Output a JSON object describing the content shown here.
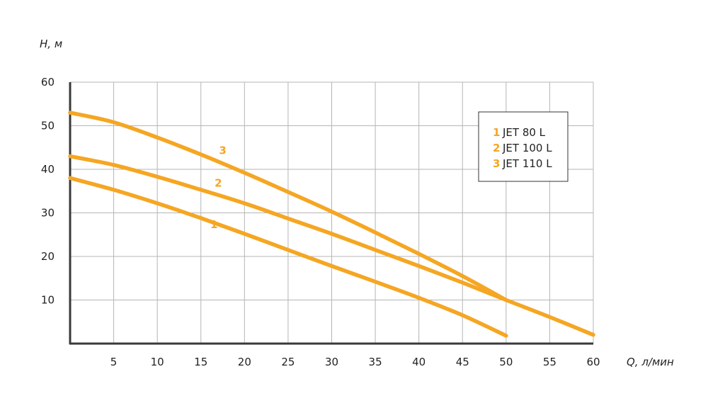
{
  "chart_data": {
    "type": "line",
    "ylabel": "H, м",
    "xlabel": "Q, л/мин",
    "xlim": [
      0,
      60
    ],
    "ylim": [
      0,
      60
    ],
    "x_ticks": [
      5,
      10,
      15,
      20,
      25,
      30,
      35,
      40,
      45,
      50,
      55,
      60
    ],
    "y_ticks": [
      10,
      20,
      30,
      40,
      50,
      60
    ],
    "grid": true,
    "line_color": "#f5a623",
    "legend_position": "top-right",
    "legend": [
      {
        "num": "1",
        "name": "JET 80 L"
      },
      {
        "num": "2",
        "name": "JET 100 L"
      },
      {
        "num": "3",
        "name": "JET 110 L"
      }
    ],
    "series": [
      {
        "label": "1",
        "label_at": [
          16.5,
          26.5
        ],
        "points": [
          [
            0,
            38
          ],
          [
            5,
            35.3
          ],
          [
            10,
            32.2
          ],
          [
            15,
            28.8
          ],
          [
            20,
            25.2
          ],
          [
            25,
            21.5
          ],
          [
            30,
            17.8
          ],
          [
            35,
            14.2
          ],
          [
            40,
            10.5
          ],
          [
            45,
            6.5
          ],
          [
            50,
            1.8
          ]
        ]
      },
      {
        "label": "2",
        "label_at": [
          17,
          36
        ],
        "points": [
          [
            0,
            43
          ],
          [
            5,
            41
          ],
          [
            10,
            38.3
          ],
          [
            15,
            35.3
          ],
          [
            20,
            32.2
          ],
          [
            25,
            28.7
          ],
          [
            30,
            25.2
          ],
          [
            35,
            21.5
          ],
          [
            40,
            17.8
          ],
          [
            45,
            14.0
          ],
          [
            50,
            10.0
          ],
          [
            55,
            6.1
          ],
          [
            60,
            2.0
          ]
        ]
      },
      {
        "label": "3",
        "label_at": [
          17.5,
          43.5
        ],
        "points": [
          [
            0,
            53
          ],
          [
            5,
            50.8
          ],
          [
            10,
            47.3
          ],
          [
            15,
            43.4
          ],
          [
            20,
            39.2
          ],
          [
            25,
            34.8
          ],
          [
            30,
            30.3
          ],
          [
            35,
            25.5
          ],
          [
            40,
            20.6
          ],
          [
            45,
            15.5
          ],
          [
            50,
            10.0
          ]
        ]
      }
    ]
  }
}
